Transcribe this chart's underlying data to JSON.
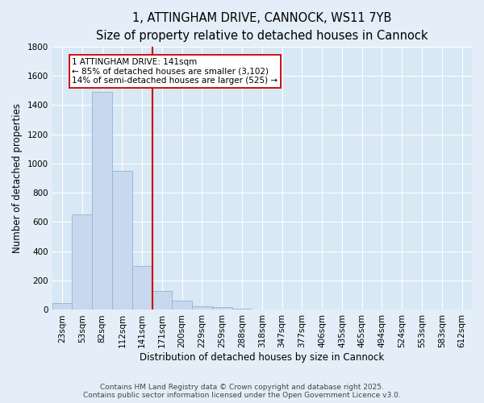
{
  "title_line1": "1, ATTINGHAM DRIVE, CANNOCK, WS11 7YB",
  "title_line2": "Size of property relative to detached houses in Cannock",
  "xlabel": "Distribution of detached houses by size in Cannock",
  "ylabel": "Number of detached properties",
  "categories": [
    "23sqm",
    "53sqm",
    "82sqm",
    "112sqm",
    "141sqm",
    "171sqm",
    "200sqm",
    "229sqm",
    "259sqm",
    "288sqm",
    "318sqm",
    "347sqm",
    "377sqm",
    "406sqm",
    "435sqm",
    "465sqm",
    "494sqm",
    "524sqm",
    "553sqm",
    "583sqm",
    "612sqm"
  ],
  "values": [
    45,
    650,
    1490,
    950,
    300,
    130,
    65,
    22,
    18,
    8,
    5,
    2,
    1,
    0,
    0,
    0,
    0,
    0,
    0,
    0,
    0
  ],
  "bar_color": "#c8d8ee",
  "bar_edge_color": "#90b4d8",
  "vline_color": "#cc0000",
  "ylim": [
    0,
    1800
  ],
  "yticks": [
    0,
    200,
    400,
    600,
    800,
    1000,
    1200,
    1400,
    1600,
    1800
  ],
  "annotation_text": "1 ATTINGHAM DRIVE: 141sqm\n← 85% of detached houses are smaller (3,102)\n14% of semi-detached houses are larger (525) →",
  "annotation_box_facecolor": "#ffffff",
  "annotation_box_edgecolor": "#cc0000",
  "footer_line1": "Contains HM Land Registry data © Crown copyright and database right 2025.",
  "footer_line2": "Contains public sector information licensed under the Open Government Licence v3.0.",
  "bg_color": "#e4eef8",
  "plot_bg_color": "#d8e8f4",
  "grid_color": "#ffffff",
  "title_fontsize": 10.5,
  "subtitle_fontsize": 9.5,
  "axis_label_fontsize": 8.5,
  "tick_fontsize": 7.5,
  "annotation_fontsize": 7.5,
  "footer_fontsize": 6.5
}
